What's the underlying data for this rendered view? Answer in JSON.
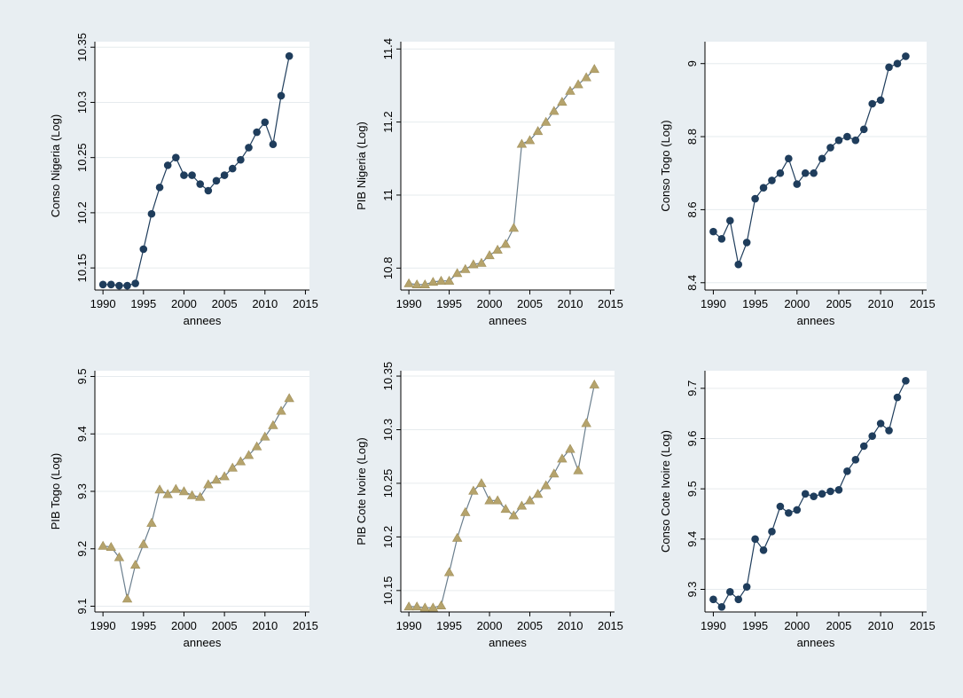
{
  "style": {
    "background": "#e8eef2",
    "plot_background": "#ffffff",
    "grid_color": "#e6ebee",
    "navy": "#1f3d5c",
    "olive": "#a08f5a",
    "olive_marker": "#b5a36c"
  },
  "chart_data": [
    {
      "type": "line",
      "xlabel": "annees",
      "ylabel": "Conso Nigeria (Log)",
      "xlim": [
        1989,
        2015.5
      ],
      "ylim": [
        10.13,
        10.355
      ],
      "xticks": [
        1990,
        1995,
        2000,
        2005,
        2010,
        2015
      ],
      "yticks": [
        10.15,
        10.2,
        10.25,
        10.3,
        10.35
      ],
      "ytick_labels": [
        "10.15",
        "10.2",
        "10.25",
        "10.3",
        "10.35"
      ],
      "grid": true,
      "marker": "circle",
      "color": "#1f3d5c",
      "marker_color": "#1f3d5c",
      "x": [
        1990,
        1991,
        1992,
        1993,
        1994,
        1995,
        1996,
        1997,
        1998,
        1999,
        2000,
        2001,
        2002,
        2003,
        2004,
        2005,
        2006,
        2007,
        2008,
        2009,
        2010,
        2011,
        2012,
        2013
      ],
      "y": [
        10.135,
        10.135,
        10.134,
        10.134,
        10.136,
        10.167,
        10.199,
        10.223,
        10.243,
        10.25,
        10.234,
        10.234,
        10.226,
        10.22,
        10.229,
        10.234,
        10.24,
        10.248,
        10.259,
        10.273,
        10.282,
        10.262,
        10.306,
        10.342
      ]
    },
    {
      "type": "line",
      "xlabel": "annees",
      "ylabel": "PIB Nigeria (Log)",
      "xlim": [
        1989,
        2015.5
      ],
      "ylim": [
        10.74,
        11.42
      ],
      "xticks": [
        1990,
        1995,
        2000,
        2005,
        2010,
        2015
      ],
      "yticks": [
        10.8,
        11.0,
        11.2,
        11.4
      ],
      "ytick_labels": [
        "10.8",
        "11",
        "11.2",
        "11.4"
      ],
      "grid": true,
      "marker": "triangle",
      "color": "#6b7f8e",
      "marker_color": "#b5a36c",
      "x": [
        1990,
        1991,
        1992,
        1993,
        1994,
        1995,
        1996,
        1997,
        1998,
        1999,
        2000,
        2001,
        2002,
        2003,
        2004,
        2005,
        2006,
        2007,
        2008,
        2009,
        2010,
        2011,
        2012,
        2013
      ],
      "y": [
        10.758,
        10.755,
        10.755,
        10.762,
        10.765,
        10.765,
        10.786,
        10.797,
        10.81,
        10.814,
        10.835,
        10.85,
        10.866,
        10.91,
        11.14,
        11.15,
        11.175,
        11.2,
        11.23,
        11.255,
        11.285,
        11.303,
        11.322,
        11.345
      ]
    },
    {
      "type": "line",
      "xlabel": "annees",
      "ylabel": "Conso Togo (Log)",
      "xlim": [
        1989,
        2015.5
      ],
      "ylim": [
        8.38,
        9.06
      ],
      "xticks": [
        1990,
        1995,
        2000,
        2005,
        2010,
        2015
      ],
      "yticks": [
        8.4,
        8.6,
        8.8,
        9.0
      ],
      "ytick_labels": [
        "8.4",
        "8.6",
        "8.8",
        "9"
      ],
      "grid": true,
      "marker": "circle",
      "color": "#1f3d5c",
      "marker_color": "#1f3d5c",
      "x": [
        1990,
        1991,
        1992,
        1993,
        1994,
        1995,
        1996,
        1997,
        1998,
        1999,
        2000,
        2001,
        2002,
        2003,
        2004,
        2005,
        2006,
        2007,
        2008,
        2009,
        2010,
        2011,
        2012,
        2013
      ],
      "y": [
        8.54,
        8.52,
        8.57,
        8.45,
        8.51,
        8.63,
        8.66,
        8.68,
        8.7,
        8.74,
        8.67,
        8.7,
        8.7,
        8.74,
        8.77,
        8.79,
        8.8,
        8.79,
        8.82,
        8.89,
        8.9,
        8.99,
        9.0,
        9.02
      ]
    },
    {
      "type": "line",
      "xlabel": "annees",
      "ylabel": "PIB Togo (Log)",
      "xlim": [
        1989,
        2015.5
      ],
      "ylim": [
        9.09,
        9.51
      ],
      "xticks": [
        1990,
        1995,
        2000,
        2005,
        2010,
        2015
      ],
      "yticks": [
        9.1,
        9.2,
        9.3,
        9.4,
        9.5
      ],
      "ytick_labels": [
        "9.1",
        "9.2",
        "9.3",
        "9.4",
        "9.5"
      ],
      "grid": true,
      "marker": "triangle",
      "color": "#6b7f8e",
      "marker_color": "#b5a36c",
      "x": [
        1990,
        1991,
        1992,
        1993,
        1994,
        1995,
        1996,
        1997,
        1998,
        1999,
        2000,
        2001,
        2002,
        2003,
        2004,
        2005,
        2006,
        2007,
        2008,
        2009,
        2010,
        2011,
        2012,
        2013
      ],
      "y": [
        9.205,
        9.203,
        9.185,
        9.113,
        9.172,
        9.208,
        9.245,
        9.303,
        9.295,
        9.304,
        9.3,
        9.293,
        9.29,
        9.312,
        9.32,
        9.326,
        9.341,
        9.352,
        9.363,
        9.378,
        9.395,
        9.415,
        9.44,
        9.462
      ]
    },
    {
      "type": "line",
      "xlabel": "annees",
      "ylabel": "PIB Cote Ivoire (Log)",
      "xlim": [
        1989,
        2015.5
      ],
      "ylim": [
        10.13,
        10.355
      ],
      "xticks": [
        1990,
        1995,
        2000,
        2005,
        2010,
        2015
      ],
      "yticks": [
        10.15,
        10.2,
        10.25,
        10.3,
        10.35
      ],
      "ytick_labels": [
        "10.15",
        "10.2",
        "10.25",
        "10.3",
        "10.35"
      ],
      "grid": true,
      "marker": "triangle",
      "color": "#6b7f8e",
      "marker_color": "#b5a36c",
      "x": [
        1990,
        1991,
        1992,
        1993,
        1994,
        1995,
        1996,
        1997,
        1998,
        1999,
        2000,
        2001,
        2002,
        2003,
        2004,
        2005,
        2006,
        2007,
        2008,
        2009,
        2010,
        2011,
        2012,
        2013
      ],
      "y": [
        10.135,
        10.135,
        10.134,
        10.134,
        10.136,
        10.167,
        10.199,
        10.223,
        10.243,
        10.25,
        10.234,
        10.234,
        10.226,
        10.22,
        10.229,
        10.234,
        10.24,
        10.248,
        10.259,
        10.273,
        10.282,
        10.262,
        10.306,
        10.342
      ]
    },
    {
      "type": "line",
      "xlabel": "annees",
      "ylabel": "Conso Cote Ivoire (Log)",
      "xlim": [
        1989,
        2015.5
      ],
      "ylim": [
        9.255,
        9.735
      ],
      "xticks": [
        1990,
        1995,
        2000,
        2005,
        2010,
        2015
      ],
      "yticks": [
        9.3,
        9.4,
        9.5,
        9.6,
        9.7
      ],
      "ytick_labels": [
        "9.3",
        "9.4",
        "9.5",
        "9.6",
        "9.7"
      ],
      "grid": true,
      "marker": "circle",
      "color": "#1f3d5c",
      "marker_color": "#1f3d5c",
      "x": [
        1990,
        1991,
        1992,
        1993,
        1994,
        1995,
        1996,
        1997,
        1998,
        1999,
        2000,
        2001,
        2002,
        2003,
        2004,
        2005,
        2006,
        2007,
        2008,
        2009,
        2010,
        2011,
        2012,
        2013
      ],
      "y": [
        9.28,
        9.265,
        9.295,
        9.28,
        9.305,
        9.4,
        9.378,
        9.415,
        9.465,
        9.452,
        9.458,
        9.49,
        9.485,
        9.49,
        9.495,
        9.498,
        9.535,
        9.558,
        9.585,
        9.605,
        9.63,
        9.616,
        9.682,
        9.715
      ]
    }
  ]
}
